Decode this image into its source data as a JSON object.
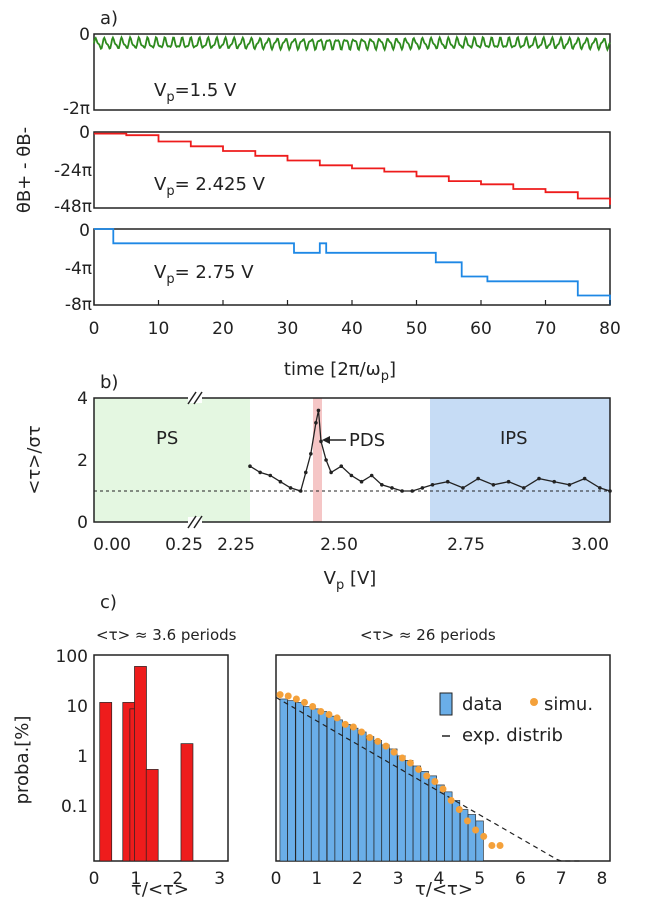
{
  "chart_data": [
    {
      "panel": "a",
      "type": "line",
      "panel_label": "a)",
      "xlabel_main": "time [2π/ω",
      "xlabel_sub": "p",
      "xlabel_end": "]",
      "ylabel": "θB+ - θB-",
      "xlim": [
        0,
        80
      ],
      "xticks": [
        "0",
        "10",
        "20",
        "30",
        "40",
        "50",
        "60",
        "70",
        "80"
      ],
      "subplots": [
        {
          "name": "Vp=1.5 V",
          "label_main": "V",
          "label_sub": "p",
          "label_rest": "=1.5 V",
          "color": "#2e8b1e",
          "yticks": [
            "0",
            "-2π"
          ],
          "ylim": [
            -2,
            0
          ],
          "x": [
            0,
            80
          ],
          "y": [
            -0.3,
            -0.3
          ],
          "kind": "oscillation"
        },
        {
          "name": "Vp=2.425 V",
          "label_main": "V",
          "label_sub": "p",
          "label_rest": "= 2.425 V",
          "color": "#ee1c1c",
          "yticks": [
            "0",
            "-24π",
            "-48π"
          ],
          "ylim": [
            -48,
            0
          ],
          "x": [
            0,
            5,
            10,
            15,
            20,
            25,
            30,
            35,
            40,
            45,
            50,
            55,
            60,
            65,
            70,
            75,
            80
          ],
          "y": [
            -1,
            -2,
            -6,
            -9,
            -12,
            -15,
            -18,
            -21,
            -23,
            -25,
            -28,
            -31,
            -33,
            -36,
            -38,
            -42,
            -46
          ]
        },
        {
          "name": "Vp=2.75 V",
          "label_main": "V",
          "label_sub": "p",
          "label_rest": "= 2.75 V",
          "color": "#1e88e5",
          "yticks": [
            "0",
            "-4π",
            "-8π"
          ],
          "ylim": [
            -8,
            0
          ],
          "x": [
            0,
            2,
            3,
            10,
            30,
            31,
            34,
            35,
            36,
            40,
            52,
            53,
            56,
            57,
            60,
            61,
            74,
            75,
            76,
            79,
            80
          ],
          "y": [
            0,
            0,
            -1.5,
            -1.5,
            -1.5,
            -2.5,
            -2.5,
            -1.5,
            -2.5,
            -2.5,
            -2.5,
            -3.5,
            -3.5,
            -5,
            -5,
            -5.5,
            -5.5,
            -7,
            -7,
            -7,
            -8
          ]
        }
      ]
    },
    {
      "panel": "b",
      "type": "line",
      "panel_label": "b)",
      "xlabel_main": "V",
      "xlabel_sub": "p",
      "xlabel_rest": " [V]",
      "ylabel": "<τ>/στ",
      "ylim": [
        0,
        4
      ],
      "yticks": [
        "0",
        "2",
        "4"
      ],
      "xticks": [
        "0.00",
        "0.25",
        "2.25",
        "2.50",
        "2.75",
        "3.00"
      ],
      "regions": [
        {
          "name": "PS",
          "color": "#e4f7e1"
        },
        {
          "name": "IPS",
          "color": "#c6dcf5"
        }
      ],
      "annotation": "PDS",
      "highlight_color": "#f5c6c6",
      "reference_level": 1.0,
      "x": [
        2.29,
        2.31,
        2.33,
        2.35,
        2.37,
        2.39,
        2.4,
        2.41,
        2.42,
        2.425,
        2.43,
        2.44,
        2.45,
        2.47,
        2.49,
        2.51,
        2.53,
        2.55,
        2.57,
        2.59,
        2.61,
        2.63,
        2.65,
        2.68,
        2.71,
        2.74,
        2.77,
        2.8,
        2.83,
        2.86,
        2.89,
        2.92,
        2.95,
        2.98,
        3.0
      ],
      "y": [
        1.8,
        1.6,
        1.5,
        1.3,
        1.1,
        1.0,
        1.6,
        2.2,
        3.2,
        3.6,
        2.6,
        2.0,
        1.6,
        1.8,
        1.5,
        1.3,
        1.5,
        1.2,
        1.1,
        1.0,
        1.0,
        1.1,
        1.2,
        1.3,
        1.1,
        1.4,
        1.2,
        1.3,
        1.1,
        1.4,
        1.3,
        1.2,
        1.4,
        1.1,
        1.0
      ]
    },
    {
      "panel": "c-left",
      "type": "bar",
      "panel_label": "c)",
      "title": "<τ> ≈ 3.6 periods",
      "ylabel": "proba.[%]",
      "xlabel": "τ/<τ>",
      "yscale": "log",
      "ylim": [
        0.01,
        100
      ],
      "yticks": [
        "100",
        "10",
        "1",
        "0.1"
      ],
      "xticks": [
        "0",
        "1",
        "2",
        "3"
      ],
      "color": "#ee1c1c",
      "x": [
        0.28,
        0.83,
        1.0,
        1.11,
        1.39,
        2.22
      ],
      "values": [
        12,
        12,
        9,
        60,
        0.6,
        1.9
      ]
    },
    {
      "panel": "c-right",
      "type": "bar",
      "title": "<τ> ≈ 26 periods",
      "xlabel": "τ/<τ>",
      "yscale": "log",
      "xticks": [
        "0",
        "1",
        "2",
        "3",
        "4",
        "5",
        "6",
        "7",
        "8"
      ],
      "legend": {
        "data": "data",
        "simu": "simu.",
        "exp": "exp. distrib",
        "position": "top-right"
      },
      "bar_color": "#6aaee8",
      "sim_color": "#f4a13b",
      "x": [
        0.19,
        0.38,
        0.58,
        0.77,
        0.96,
        1.15,
        1.35,
        1.54,
        1.73,
        1.92,
        2.12,
        2.31,
        2.5,
        2.69,
        2.88,
        3.08,
        3.27,
        3.46,
        3.65,
        3.85,
        4.04,
        4.23,
        4.42,
        4.62,
        4.81,
        5.0
      ],
      "values": [
        14,
        13,
        12,
        10,
        9,
        8,
        6.5,
        5.5,
        4.5,
        3.8,
        3.2,
        2.6,
        2.2,
        1.8,
        1.5,
        1.1,
        0.9,
        0.7,
        0.55,
        0.45,
        0.3,
        0.22,
        0.15,
        0.1,
        0.08,
        0.06
      ],
      "simu_x": [
        0.1,
        0.3,
        0.5,
        0.7,
        0.9,
        1.1,
        1.3,
        1.5,
        1.7,
        1.9,
        2.1,
        2.3,
        2.5,
        2.7,
        2.9,
        3.1,
        3.3,
        3.5,
        3.7,
        3.9,
        4.1,
        4.3,
        4.5,
        4.7,
        4.9,
        5.1,
        5.3,
        5.5
      ],
      "simu_y": [
        17,
        16,
        14,
        12,
        10,
        8,
        7,
        6,
        4.5,
        4,
        3.2,
        2.5,
        2.1,
        1.7,
        1.3,
        1.0,
        0.8,
        0.6,
        0.45,
        0.35,
        0.25,
        0.15,
        0.1,
        0.06,
        0.04,
        0.03,
        0.02,
        0.02
      ]
    }
  ]
}
